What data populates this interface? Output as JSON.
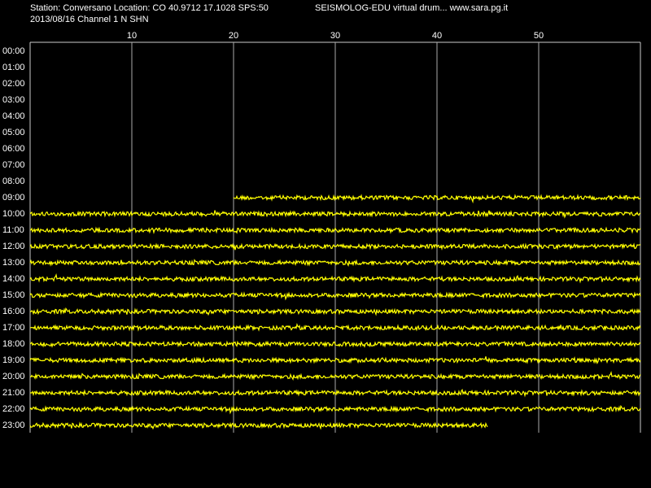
{
  "chart_data": {
    "type": "drum",
    "title": "Station: Conversano Location: CO 40.9712 17.1028 SPS:50",
    "subtitle": "SEISMOLOG-EDU virtual drum... www.sara.pg.it",
    "caption": "2013/08/16  Channel 1 N SHN",
    "categories": [
      "00:00",
      "01:00",
      "02:00",
      "03:00",
      "04:00",
      "05:00",
      "06:00",
      "07:00",
      "08:00",
      "09:00",
      "10:00",
      "11:00",
      "12:00",
      "13:00",
      "14:00",
      "15:00",
      "16:00",
      "17:00",
      "18:00",
      "19:00",
      "20:00",
      "21:00",
      "22:00",
      "23:00"
    ],
    "start": [
      null,
      null,
      null,
      null,
      null,
      null,
      null,
      null,
      null,
      20,
      0,
      0,
      0,
      0,
      0,
      0,
      0,
      0,
      0,
      0,
      0,
      0,
      0,
      0
    ],
    "end": [
      null,
      null,
      null,
      null,
      null,
      null,
      null,
      null,
      null,
      60,
      60,
      60,
      60,
      60,
      60,
      60,
      60,
      60,
      60,
      60,
      60,
      60,
      60,
      45
    ],
    "color": "#ffff00",
    "xlim": [
      0,
      60
    ],
    "xticks": [
      10,
      20,
      30,
      40,
      50
    ],
    "grid": true
  }
}
